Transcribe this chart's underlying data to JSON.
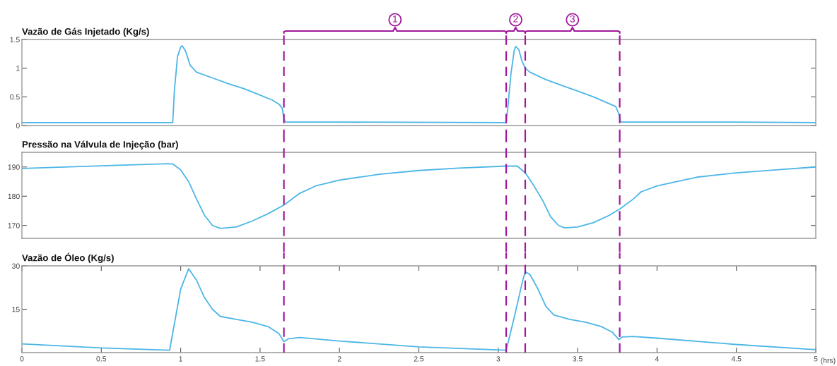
{
  "chart_data": [
    {
      "type": "line",
      "title": "Vazão de Gás Injetado (Kg/s)",
      "tick_labels": "y",
      "grid": false,
      "legend": false,
      "xlim": [
        0,
        5
      ],
      "xticks": [
        0,
        0.5,
        1,
        1.5,
        2,
        2.5,
        3,
        3.5,
        4,
        4.5,
        5
      ],
      "ylim": [
        0,
        1.5
      ],
      "yticks": [
        0,
        0.5,
        1,
        1.5
      ],
      "series": [
        {
          "color": "#4cb6e6",
          "x": [
            0,
            0.95,
            0.96,
            0.98,
            1.0,
            1.01,
            1.03,
            1.06,
            1.1,
            1.2,
            1.3,
            1.4,
            1.5,
            1.58,
            1.62,
            1.64,
            1.65,
            1.66,
            2.0,
            3.05,
            3.06,
            3.08,
            3.1,
            3.11,
            3.13,
            3.15,
            3.17,
            3.2,
            3.3,
            3.4,
            3.5,
            3.6,
            3.7,
            3.74,
            3.76,
            3.77,
            3.78,
            4.5,
            5
          ],
          "values": [
            0.05,
            0.05,
            0.6,
            1.2,
            1.37,
            1.39,
            1.3,
            1.05,
            0.93,
            0.83,
            0.73,
            0.64,
            0.53,
            0.44,
            0.37,
            0.3,
            0.12,
            0.06,
            0.06,
            0.05,
            0.3,
            0.9,
            1.3,
            1.38,
            1.32,
            1.12,
            1.0,
            0.93,
            0.8,
            0.7,
            0.6,
            0.5,
            0.38,
            0.33,
            0.2,
            0.07,
            0.06,
            0.06,
            0.05
          ]
        }
      ],
      "ref_lines": [
        {
          "axis": "x",
          "value": 1.65,
          "color": "#a0189c",
          "line_style": "dashed"
        },
        {
          "axis": "x",
          "value": 3.05,
          "color": "#a0189c",
          "line_style": "dashed"
        },
        {
          "axis": "x",
          "value": 3.17,
          "color": "#a0189c",
          "line_style": "dashed"
        },
        {
          "axis": "x",
          "value": 3.765,
          "color": "#a0189c",
          "line_style": "dashed"
        }
      ],
      "annotations": [
        "1",
        "2",
        "3"
      ]
    },
    {
      "type": "line",
      "title": "Pressão na Válvula de Injeção (bar)",
      "tick_labels": "y",
      "grid": false,
      "legend": false,
      "xlim": [
        0,
        5
      ],
      "xticks": [
        0,
        0.5,
        1,
        1.5,
        2,
        2.5,
        3,
        3.5,
        4,
        4.5,
        5
      ],
      "ylim": [
        165.6,
        195
      ],
      "yticks": [
        170,
        180,
        190
      ],
      "series": [
        {
          "color": "#4cb6e6",
          "x": [
            0,
            0.5,
            0.92,
            0.95,
            1.0,
            1.05,
            1.1,
            1.15,
            1.2,
            1.25,
            1.35,
            1.45,
            1.55,
            1.65,
            1.75,
            1.85,
            2.0,
            2.25,
            2.5,
            2.75,
            3.05,
            3.12,
            3.17,
            3.22,
            3.28,
            3.33,
            3.38,
            3.42,
            3.5,
            3.6,
            3.7,
            3.77,
            3.85,
            3.9,
            4.0,
            4.25,
            4.5,
            4.75,
            5.0
          ],
          "values": [
            189.5,
            190.4,
            191.1,
            191,
            189,
            185,
            179,
            173.5,
            170,
            169,
            169.5,
            171.5,
            174,
            177,
            181,
            183.5,
            185.5,
            187.5,
            188.8,
            189.6,
            190.3,
            190.3,
            188,
            184,
            178.5,
            173,
            170,
            169.2,
            169.5,
            171,
            173.5,
            175.8,
            179,
            181.5,
            183.5,
            186.5,
            188,
            189,
            190
          ]
        }
      ],
      "ref_lines": [
        {
          "axis": "x",
          "value": 1.65,
          "color": "#a0189c",
          "line_style": "dashed"
        },
        {
          "axis": "x",
          "value": 3.05,
          "color": "#a0189c",
          "line_style": "dashed"
        },
        {
          "axis": "x",
          "value": 3.17,
          "color": "#a0189c",
          "line_style": "dashed"
        },
        {
          "axis": "x",
          "value": 3.765,
          "color": "#a0189c",
          "line_style": "dashed"
        }
      ]
    },
    {
      "type": "line",
      "title": "Vazão de Óleo (Kg/s)",
      "xlabel": "(hrs)",
      "grid": false,
      "legend": false,
      "xlim": [
        0,
        5
      ],
      "xticks": [
        0,
        0.5,
        1,
        1.5,
        2,
        2.5,
        3,
        3.5,
        4,
        4.5,
        5
      ],
      "ylim": [
        0,
        30
      ],
      "yticks": [
        15,
        30
      ],
      "series": [
        {
          "color": "#4cb6e6",
          "x": [
            0,
            0.5,
            0.93,
            1.0,
            1.05,
            1.1,
            1.15,
            1.2,
            1.25,
            1.35,
            1.45,
            1.55,
            1.62,
            1.65,
            1.68,
            1.75,
            2.0,
            2.5,
            3.05,
            3.1,
            3.15,
            3.17,
            3.2,
            3.25,
            3.3,
            3.35,
            3.45,
            3.55,
            3.65,
            3.72,
            3.76,
            3.78,
            3.85,
            4.0,
            4.5,
            5.0
          ],
          "values": [
            3.0,
            1.6,
            0.8,
            22,
            29,
            25,
            19,
            15,
            12.5,
            11.5,
            10.5,
            9,
            6.5,
            3.8,
            4.8,
            5.2,
            4,
            2,
            0.8,
            12,
            24,
            28,
            27,
            22,
            16,
            13,
            11.5,
            10.5,
            9,
            7,
            4.5,
            5.4,
            5.6,
            5,
            2.8,
            1.0
          ]
        }
      ],
      "ref_lines": [
        {
          "axis": "x",
          "value": 1.65,
          "color": "#a0189c",
          "line_style": "dashed"
        },
        {
          "axis": "x",
          "value": 3.05,
          "color": "#a0189c",
          "line_style": "dashed"
        },
        {
          "axis": "x",
          "value": 3.17,
          "color": "#a0189c",
          "line_style": "dashed"
        },
        {
          "axis": "x",
          "value": 3.765,
          "color": "#a0189c",
          "line_style": "dashed"
        }
      ]
    }
  ]
}
